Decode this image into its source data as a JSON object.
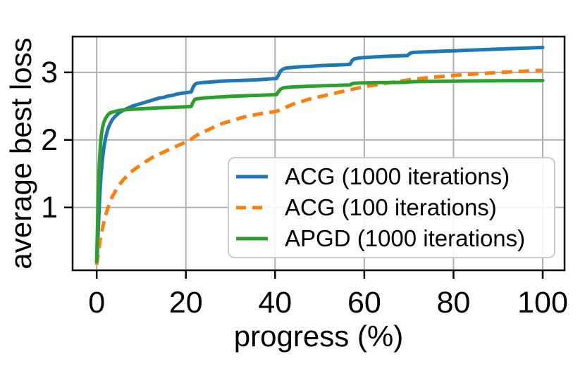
{
  "figure": {
    "background": "#ffffff"
  },
  "chart_data": {
    "type": "line",
    "title": "",
    "xlabel": "progress (%)",
    "ylabel": "average best loss",
    "xlim": [
      -5.4,
      104.9
    ],
    "ylim": [
      0.07,
      3.53
    ],
    "xticks": [
      0,
      20,
      40,
      60,
      80,
      100
    ],
    "yticks": [
      1,
      2,
      3
    ],
    "grid": true,
    "grid_color": "#b0b0b0",
    "spine_color": "#000000",
    "legend_position": "lower-right-inside",
    "legend_border_color": "#cccccc",
    "series": [
      {
        "name": "ACG (1000 iterations)",
        "color": "#1f77b4",
        "style": "solid",
        "points": [
          [
            0,
            0.18
          ],
          [
            0.2,
            0.4
          ],
          [
            0.4,
            0.75
          ],
          [
            0.6,
            1.05
          ],
          [
            0.8,
            1.3
          ],
          [
            1,
            1.5
          ],
          [
            1.3,
            1.72
          ],
          [
            1.6,
            1.88
          ],
          [
            2,
            2.03
          ],
          [
            2.5,
            2.16
          ],
          [
            3,
            2.24
          ],
          [
            3.5,
            2.3
          ],
          [
            4,
            2.34
          ],
          [
            5,
            2.4
          ],
          [
            6,
            2.44
          ],
          [
            7,
            2.47
          ],
          [
            8,
            2.5
          ],
          [
            9,
            2.52
          ],
          [
            10,
            2.54
          ],
          [
            11,
            2.56
          ],
          [
            12,
            2.58
          ],
          [
            13,
            2.6
          ],
          [
            14,
            2.62
          ],
          [
            15,
            2.63
          ],
          [
            16,
            2.65
          ],
          [
            17,
            2.66
          ],
          [
            18,
            2.68
          ],
          [
            19,
            2.69
          ],
          [
            20,
            2.7
          ],
          [
            21.2,
            2.71
          ],
          [
            21.6,
            2.78
          ],
          [
            22,
            2.82
          ],
          [
            22.5,
            2.84
          ],
          [
            24,
            2.85
          ],
          [
            26,
            2.86
          ],
          [
            28,
            2.87
          ],
          [
            30,
            2.875
          ],
          [
            32,
            2.88
          ],
          [
            34,
            2.885
          ],
          [
            36,
            2.89
          ],
          [
            38,
            2.9
          ],
          [
            40.3,
            2.91
          ],
          [
            40.7,
            2.95
          ],
          [
            41.2,
            3.02
          ],
          [
            41.8,
            3.05
          ],
          [
            42.5,
            3.065
          ],
          [
            44,
            3.075
          ],
          [
            46,
            3.085
          ],
          [
            48,
            3.09
          ],
          [
            50,
            3.1
          ],
          [
            52,
            3.105
          ],
          [
            54,
            3.11
          ],
          [
            56,
            3.115
          ],
          [
            56.8,
            3.12
          ],
          [
            57.2,
            3.17
          ],
          [
            57.7,
            3.2
          ],
          [
            58.5,
            3.21
          ],
          [
            60,
            3.22
          ],
          [
            62,
            3.228
          ],
          [
            64,
            3.235
          ],
          [
            66,
            3.24
          ],
          [
            68,
            3.245
          ],
          [
            69.7,
            3.25
          ],
          [
            70.2,
            3.28
          ],
          [
            70.8,
            3.295
          ],
          [
            72,
            3.3
          ],
          [
            74,
            3.305
          ],
          [
            76,
            3.31
          ],
          [
            78,
            3.315
          ],
          [
            80,
            3.32
          ],
          [
            83,
            3.328
          ],
          [
            86,
            3.335
          ],
          [
            89,
            3.342
          ],
          [
            92,
            3.35
          ],
          [
            95,
            3.357
          ],
          [
            98,
            3.364
          ],
          [
            100,
            3.37
          ]
        ]
      },
      {
        "name": "ACG (100 iterations)",
        "color": "#ff7f0e",
        "style": "dashed",
        "points": [
          [
            0,
            0.15
          ],
          [
            0.4,
            0.35
          ],
          [
            0.8,
            0.52
          ],
          [
            1.2,
            0.66
          ],
          [
            1.6,
            0.78
          ],
          [
            2,
            0.88
          ],
          [
            2.5,
            0.99
          ],
          [
            3,
            1.08
          ],
          [
            3.5,
            1.16
          ],
          [
            4,
            1.22
          ],
          [
            5,
            1.33
          ],
          [
            6,
            1.41
          ],
          [
            7,
            1.48
          ],
          [
            8,
            1.54
          ],
          [
            9,
            1.59
          ],
          [
            10,
            1.64
          ],
          [
            11,
            1.68
          ],
          [
            12,
            1.72
          ],
          [
            13,
            1.76
          ],
          [
            14,
            1.79
          ],
          [
            15,
            1.82
          ],
          [
            16,
            1.85
          ],
          [
            17,
            1.88
          ],
          [
            18,
            1.91
          ],
          [
            19,
            1.94
          ],
          [
            20,
            1.97
          ],
          [
            21,
            2.0
          ],
          [
            22,
            2.05
          ],
          [
            23,
            2.09
          ],
          [
            24,
            2.12
          ],
          [
            25,
            2.15
          ],
          [
            26,
            2.18
          ],
          [
            27,
            2.21
          ],
          [
            28,
            2.24
          ],
          [
            29,
            2.26
          ],
          [
            30,
            2.28
          ],
          [
            31,
            2.3
          ],
          [
            32,
            2.32
          ],
          [
            33,
            2.34
          ],
          [
            34,
            2.35
          ],
          [
            35,
            2.365
          ],
          [
            36,
            2.38
          ],
          [
            37,
            2.39
          ],
          [
            38,
            2.4
          ],
          [
            39,
            2.41
          ],
          [
            40,
            2.42
          ],
          [
            41,
            2.44
          ],
          [
            42,
            2.47
          ],
          [
            43,
            2.5
          ],
          [
            44,
            2.53
          ],
          [
            45,
            2.55
          ],
          [
            46,
            2.57
          ],
          [
            47,
            2.59
          ],
          [
            48,
            2.61
          ],
          [
            50,
            2.64
          ],
          [
            52,
            2.67
          ],
          [
            54,
            2.7
          ],
          [
            56,
            2.73
          ],
          [
            58,
            2.76
          ],
          [
            60,
            2.79
          ],
          [
            62,
            2.81
          ],
          [
            64,
            2.83
          ],
          [
            66,
            2.85
          ],
          [
            68,
            2.87
          ],
          [
            70,
            2.89
          ],
          [
            72,
            2.905
          ],
          [
            74,
            2.92
          ],
          [
            76,
            2.932
          ],
          [
            78,
            2.944
          ],
          [
            80,
            2.955
          ],
          [
            82,
            2.965
          ],
          [
            84,
            2.974
          ],
          [
            86,
            2.982
          ],
          [
            88,
            2.99
          ],
          [
            90,
            2.998
          ],
          [
            92,
            3.005
          ],
          [
            94,
            3.012
          ],
          [
            96,
            3.018
          ],
          [
            98,
            3.026
          ],
          [
            100,
            3.03
          ]
        ]
      },
      {
        "name": "APGD (1000 iterations)",
        "color": "#2ca02c",
        "style": "solid",
        "points": [
          [
            0,
            0.2
          ],
          [
            0.15,
            0.6
          ],
          [
            0.3,
            1.05
          ],
          [
            0.45,
            1.4
          ],
          [
            0.6,
            1.65
          ],
          [
            0.8,
            1.88
          ],
          [
            1,
            2.05
          ],
          [
            1.3,
            2.18
          ],
          [
            1.6,
            2.26
          ],
          [
            2,
            2.32
          ],
          [
            2.5,
            2.37
          ],
          [
            3,
            2.4
          ],
          [
            4,
            2.42
          ],
          [
            5,
            2.435
          ],
          [
            6,
            2.445
          ],
          [
            8,
            2.455
          ],
          [
            10,
            2.462
          ],
          [
            12,
            2.468
          ],
          [
            14,
            2.474
          ],
          [
            16,
            2.48
          ],
          [
            18,
            2.485
          ],
          [
            20,
            2.49
          ],
          [
            21.2,
            2.495
          ],
          [
            21.6,
            2.56
          ],
          [
            22,
            2.6
          ],
          [
            22.5,
            2.61
          ],
          [
            24,
            2.62
          ],
          [
            26,
            2.63
          ],
          [
            28,
            2.638
          ],
          [
            30,
            2.645
          ],
          [
            32,
            2.65
          ],
          [
            34,
            2.656
          ],
          [
            36,
            2.66
          ],
          [
            38,
            2.665
          ],
          [
            40.3,
            2.67
          ],
          [
            40.7,
            2.71
          ],
          [
            41.2,
            2.75
          ],
          [
            41.8,
            2.77
          ],
          [
            42.5,
            2.778
          ],
          [
            44,
            2.785
          ],
          [
            46,
            2.79
          ],
          [
            48,
            2.796
          ],
          [
            50,
            2.8
          ],
          [
            53,
            2.806
          ],
          [
            56,
            2.812
          ],
          [
            56.8,
            2.814
          ],
          [
            57.2,
            2.83
          ],
          [
            57.8,
            2.84
          ],
          [
            59,
            2.843
          ],
          [
            61,
            2.846
          ],
          [
            63,
            2.848
          ],
          [
            66,
            2.851
          ],
          [
            69.7,
            2.854
          ],
          [
            70.3,
            2.861
          ],
          [
            72,
            2.864
          ],
          [
            75,
            2.867
          ],
          [
            78,
            2.869
          ],
          [
            82,
            2.872
          ],
          [
            86,
            2.874
          ],
          [
            90,
            2.876
          ],
          [
            95,
            2.878
          ],
          [
            100,
            2.88
          ]
        ]
      }
    ]
  }
}
